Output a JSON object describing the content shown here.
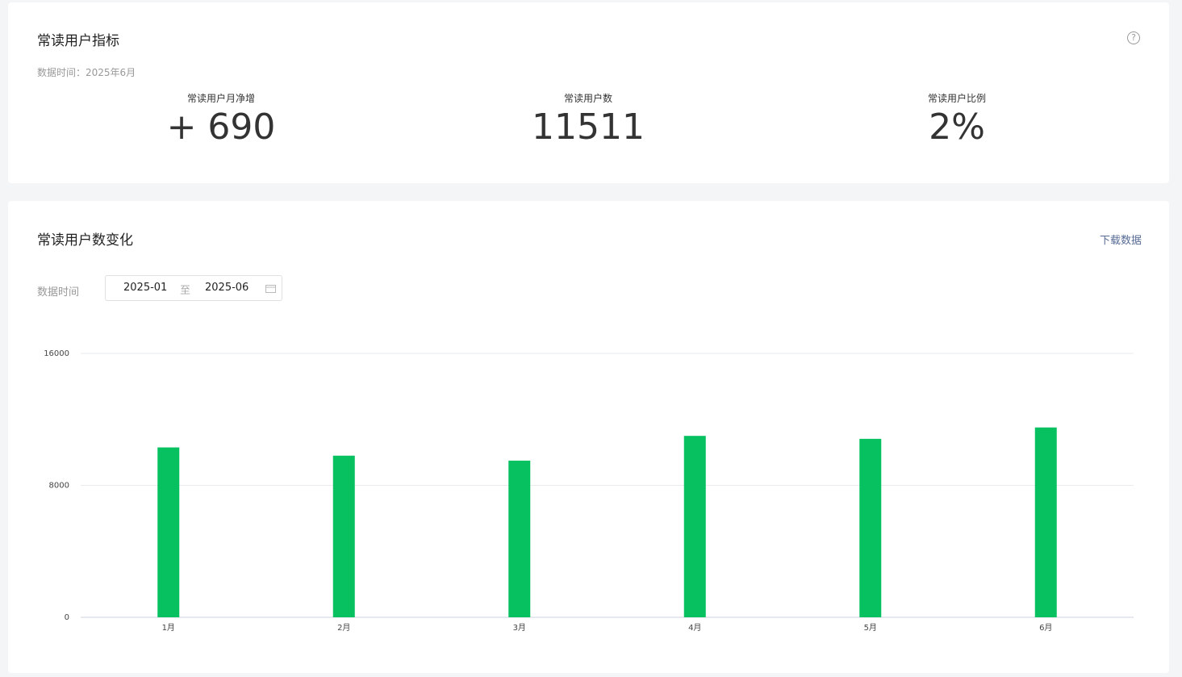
{
  "metrics_card": {
    "title": "常读用户指标",
    "data_time": "数据时间：2025年6月",
    "metrics": [
      {
        "label": "常读用户月净增",
        "value": "+ 690"
      },
      {
        "label": "常读用户数",
        "value": "11511"
      },
      {
        "label": "常读用户比例",
        "value": "2%"
      }
    ]
  },
  "trend_card": {
    "title": "常读用户数变化",
    "download": "下载数据",
    "filter_label": "数据时间",
    "date_start": "2025-01",
    "date_separator": "至",
    "date_end": "2025-06"
  },
  "chart_data": {
    "type": "bar",
    "categories": [
      "1月",
      "2月",
      "3月",
      "4月",
      "5月",
      "6月"
    ],
    "values": [
      10300,
      9800,
      9500,
      11000,
      10821,
      11511
    ],
    "color": "#07c160",
    "ylim": [
      0,
      16000
    ],
    "yticks": [
      0,
      8000,
      16000
    ],
    "grid": true
  }
}
